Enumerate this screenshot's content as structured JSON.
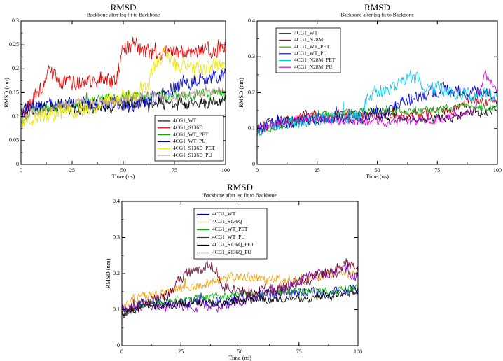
{
  "chart_data": [
    {
      "type": "line",
      "title": "RMSD",
      "subtitle": "Backbone after lsq fit to Backbone",
      "xlabel": "Time (ns)",
      "ylabel": "RMSD (nm)",
      "xlim": [
        0,
        100
      ],
      "ylim": [
        0,
        0.3
      ],
      "xticks": [
        "0",
        "25",
        "50",
        "75",
        "100"
      ],
      "yticks": [
        "0",
        "0.05",
        "0.1",
        "0.15",
        "0.2",
        "0.25",
        "0.3"
      ],
      "grid": false,
      "legend_position": "bottom-right",
      "series": [
        {
          "name": "4CG1_WT",
          "color": "#000000",
          "anchors": [
            [
              0,
              0.1
            ],
            [
              3,
              0.12
            ],
            [
              20,
              0.115
            ],
            [
              45,
              0.12
            ],
            [
              60,
              0.13
            ],
            [
              75,
              0.125
            ],
            [
              85,
              0.13
            ],
            [
              90,
              0.125
            ],
            [
              100,
              0.14
            ]
          ],
          "noise": 0.012
        },
        {
          "name": "4CG1_S136D",
          "color": "#e00000",
          "anchors": [
            [
              0,
              0.1
            ],
            [
              5,
              0.13
            ],
            [
              10,
              0.16
            ],
            [
              13,
              0.2
            ],
            [
              20,
              0.17
            ],
            [
              30,
              0.17
            ],
            [
              40,
              0.18
            ],
            [
              46,
              0.17
            ],
            [
              50,
              0.24
            ],
            [
              55,
              0.25
            ],
            [
              65,
              0.23
            ],
            [
              75,
              0.24
            ],
            [
              80,
              0.23
            ],
            [
              90,
              0.24
            ],
            [
              100,
              0.24
            ]
          ],
          "noise": 0.015
        },
        {
          "name": "4CG1_WT_PET",
          "color": "#00b000",
          "anchors": [
            [
              0,
              0.09
            ],
            [
              5,
              0.115
            ],
            [
              20,
              0.12
            ],
            [
              45,
              0.14
            ],
            [
              60,
              0.14
            ],
            [
              80,
              0.145
            ],
            [
              100,
              0.15
            ]
          ],
          "noise": 0.01
        },
        {
          "name": "4CG1_WT_PU",
          "color": "#0000c8",
          "anchors": [
            [
              0,
              0.11
            ],
            [
              5,
              0.125
            ],
            [
              25,
              0.125
            ],
            [
              45,
              0.13
            ],
            [
              55,
              0.12
            ],
            [
              60,
              0.13
            ],
            [
              70,
              0.15
            ],
            [
              80,
              0.17
            ],
            [
              90,
              0.18
            ],
            [
              100,
              0.19
            ]
          ],
          "noise": 0.013
        },
        {
          "name": "4CG1_S136D_PET",
          "color": "#e8e800",
          "anchors": [
            [
              0,
              0.09
            ],
            [
              5,
              0.1
            ],
            [
              25,
              0.11
            ],
            [
              35,
              0.12
            ],
            [
              45,
              0.14
            ],
            [
              55,
              0.145
            ],
            [
              62,
              0.16
            ],
            [
              66,
              0.21
            ],
            [
              70,
              0.23
            ],
            [
              75,
              0.21
            ],
            [
              85,
              0.2
            ],
            [
              100,
              0.21
            ]
          ],
          "noise": 0.015
        },
        {
          "name": "4CG1_S136D_PU",
          "color": "#c8a090",
          "anchors": [
            [
              0,
              0.09
            ],
            [
              5,
              0.105
            ],
            [
              25,
              0.13
            ],
            [
              45,
              0.13
            ],
            [
              60,
              0.145
            ],
            [
              75,
              0.14
            ],
            [
              90,
              0.15
            ],
            [
              100,
              0.155
            ]
          ],
          "noise": 0.008
        }
      ]
    },
    {
      "type": "line",
      "title": "RMSD",
      "subtitle": "Backbone after lsq fit to Backbone",
      "xlabel": "Time (ns)",
      "ylabel": "RMSD (nm)",
      "xlim": [
        0,
        100
      ],
      "ylim": [
        0,
        0.4
      ],
      "xticks": [
        "0",
        "25",
        "50",
        "75",
        "100"
      ],
      "yticks": [
        "0",
        "0.1",
        "0.2",
        "0.3",
        "0.4"
      ],
      "grid": false,
      "legend_position": "top-left",
      "series": [
        {
          "name": "4CG1_WT",
          "color": "#000000",
          "anchors": [
            [
              0,
              0.1
            ],
            [
              10,
              0.12
            ],
            [
              50,
              0.13
            ],
            [
              80,
              0.13
            ],
            [
              90,
              0.145
            ],
            [
              100,
              0.15
            ]
          ],
          "noise": 0.012
        },
        {
          "name": "4CG1_N28M",
          "color": "#c00000",
          "anchors": [
            [
              0,
              0.1
            ],
            [
              10,
              0.12
            ],
            [
              20,
              0.14
            ],
            [
              40,
              0.14
            ],
            [
              60,
              0.14
            ],
            [
              80,
              0.15
            ],
            [
              90,
              0.18
            ],
            [
              100,
              0.17
            ]
          ],
          "noise": 0.012
        },
        {
          "name": "4CG1_WT_PET",
          "color": "#00b000",
          "anchors": [
            [
              0,
              0.09
            ],
            [
              10,
              0.11
            ],
            [
              30,
              0.14
            ],
            [
              50,
              0.15
            ],
            [
              70,
              0.15
            ],
            [
              90,
              0.16
            ],
            [
              100,
              0.16
            ]
          ],
          "noise": 0.01
        },
        {
          "name": "4CG1_WT_PU",
          "color": "#0000c8",
          "anchors": [
            [
              0,
              0.1
            ],
            [
              15,
              0.12
            ],
            [
              30,
              0.13
            ],
            [
              45,
              0.14
            ],
            [
              55,
              0.15
            ],
            [
              62,
              0.18
            ],
            [
              70,
              0.19
            ],
            [
              78,
              0.21
            ],
            [
              85,
              0.2
            ],
            [
              95,
              0.2
            ],
            [
              100,
              0.19
            ]
          ],
          "noise": 0.016
        },
        {
          "name": "4CG1_N28M_PET",
          "color": "#00c8e8",
          "anchors": [
            [
              0,
              0.09
            ],
            [
              10,
              0.11
            ],
            [
              30,
              0.13
            ],
            [
              44,
              0.13
            ],
            [
              46,
              0.2
            ],
            [
              55,
              0.21
            ],
            [
              63,
              0.25
            ],
            [
              70,
              0.22
            ],
            [
              80,
              0.2
            ],
            [
              90,
              0.19
            ],
            [
              100,
              0.19
            ]
          ],
          "noise": 0.018
        },
        {
          "name": "4CG1_N28M_PU",
          "color": "#d000d0",
          "anchors": [
            [
              0,
              0.1
            ],
            [
              10,
              0.12
            ],
            [
              20,
              0.13
            ],
            [
              40,
              0.12
            ],
            [
              60,
              0.12
            ],
            [
              80,
              0.13
            ],
            [
              90,
              0.15
            ],
            [
              95,
              0.25
            ],
            [
              100,
              0.2
            ]
          ],
          "noise": 0.012
        }
      ]
    },
    {
      "type": "line",
      "title": "RMSD",
      "subtitle": "Backbone after lsq fit to Backbone",
      "xlabel": "Time (ns)",
      "ylabel": "RMSD (nm)",
      "xlim": [
        0,
        100
      ],
      "ylim": [
        0,
        0.4
      ],
      "xticks": [
        "0",
        "25",
        "50",
        "75",
        "100"
      ],
      "yticks": [
        "0",
        "0.1",
        "0.2",
        "0.3",
        "0.4"
      ],
      "grid": false,
      "legend_position": "top-left",
      "series": [
        {
          "name": "4CG1_WT",
          "color": "#0000c8",
          "anchors": [
            [
              0,
              0.1
            ],
            [
              10,
              0.12
            ],
            [
              40,
              0.12
            ],
            [
              60,
              0.14
            ],
            [
              80,
              0.15
            ],
            [
              90,
              0.15
            ],
            [
              100,
              0.16
            ]
          ],
          "noise": 0.013
        },
        {
          "name": "4CG1_S136Q",
          "color": "#f0a000",
          "anchors": [
            [
              0,
              0.1
            ],
            [
              5,
              0.13
            ],
            [
              15,
              0.14
            ],
            [
              25,
              0.16
            ],
            [
              35,
              0.17
            ],
            [
              45,
              0.19
            ],
            [
              55,
              0.19
            ],
            [
              70,
              0.18
            ],
            [
              85,
              0.19
            ],
            [
              100,
              0.2
            ]
          ],
          "noise": 0.012
        },
        {
          "name": "4CG1_WT_PET",
          "color": "#00b000",
          "anchors": [
            [
              0,
              0.09
            ],
            [
              10,
              0.115
            ],
            [
              30,
              0.13
            ],
            [
              50,
              0.14
            ],
            [
              70,
              0.15
            ],
            [
              90,
              0.15
            ],
            [
              100,
              0.16
            ]
          ],
          "noise": 0.01
        },
        {
          "name": "4CG1_WT_PU",
          "color": "#8000c0",
          "anchors": [
            [
              0,
              0.1
            ],
            [
              10,
              0.11
            ],
            [
              40,
              0.11
            ],
            [
              60,
              0.14
            ],
            [
              75,
              0.18
            ],
            [
              85,
              0.2
            ],
            [
              95,
              0.21
            ],
            [
              100,
              0.19
            ]
          ],
          "noise": 0.014
        },
        {
          "name": "4CG1_S136Q_PET",
          "color": "#000000",
          "anchors": [
            [
              0,
              0.09
            ],
            [
              10,
              0.11
            ],
            [
              40,
              0.12
            ],
            [
              60,
              0.13
            ],
            [
              80,
              0.13
            ],
            [
              90,
              0.14
            ],
            [
              100,
              0.15
            ]
          ],
          "noise": 0.01
        },
        {
          "name": "4CG1_S136Q_PU",
          "color": "#700030",
          "anchors": [
            [
              0,
              0.09
            ],
            [
              10,
              0.12
            ],
            [
              20,
              0.14
            ],
            [
              24,
              0.18
            ],
            [
              28,
              0.2
            ],
            [
              32,
              0.21
            ],
            [
              38,
              0.22
            ],
            [
              40,
              0.21
            ],
            [
              42,
              0.16
            ],
            [
              55,
              0.15
            ],
            [
              65,
              0.16
            ],
            [
              75,
              0.17
            ],
            [
              85,
              0.2
            ],
            [
              95,
              0.23
            ],
            [
              100,
              0.2
            ]
          ],
          "noise": 0.014
        }
      ]
    }
  ]
}
